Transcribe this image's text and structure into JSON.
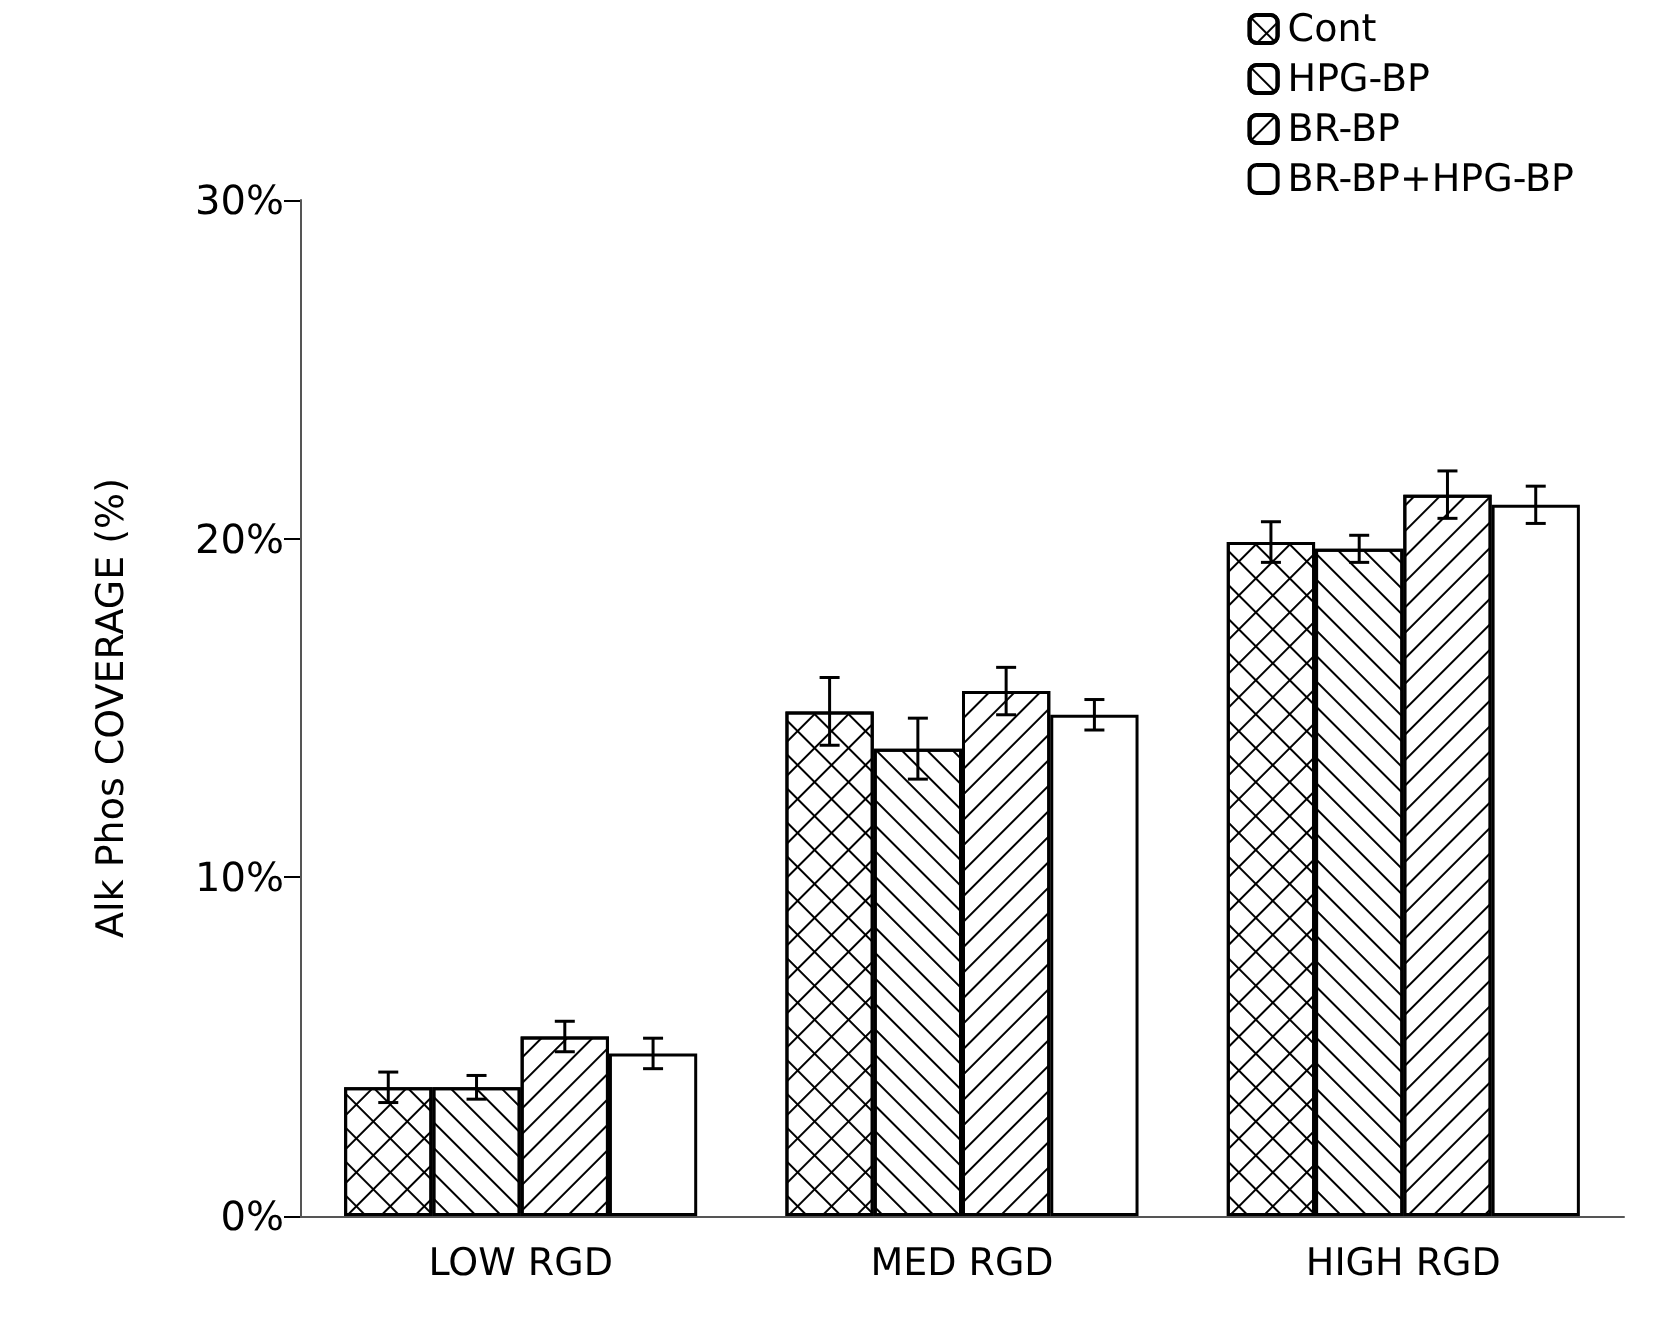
{
  "chart_data": {
    "type": "bar",
    "ylabel": "Alk Phos COVERAGE (%)",
    "categories": [
      "LOW RGD",
      "MED RGD",
      "HIGH RGD"
    ],
    "series": [
      {
        "name": "Cont",
        "color": "#ffffff",
        "values": [
          3.8,
          14.9,
          19.9
        ],
        "errors": [
          0.45,
          1.0,
          0.6
        ]
      },
      {
        "name": "HPG-BP",
        "color": "#ffffff",
        "values": [
          3.8,
          13.8,
          19.7
        ],
        "errors": [
          0.35,
          0.9,
          0.4
        ]
      },
      {
        "name": "BR-BP",
        "color": "#ffffff",
        "values": [
          5.3,
          15.5,
          21.3
        ],
        "errors": [
          0.45,
          0.7,
          0.7
        ]
      },
      {
        "name": "BR-BP+HPG-BP",
        "color": "#ffffff",
        "values": [
          4.8,
          14.8,
          21.0
        ],
        "errors": [
          0.45,
          0.45,
          0.55
        ]
      }
    ],
    "ylim": [
      0,
      30
    ],
    "yticks": [
      {
        "value": 0,
        "label": "0%"
      },
      {
        "value": 10,
        "label": "10%"
      },
      {
        "value": 20,
        "label": "20%"
      },
      {
        "value": 30,
        "label": "30%"
      }
    ],
    "grid": false,
    "legend": "top right"
  }
}
